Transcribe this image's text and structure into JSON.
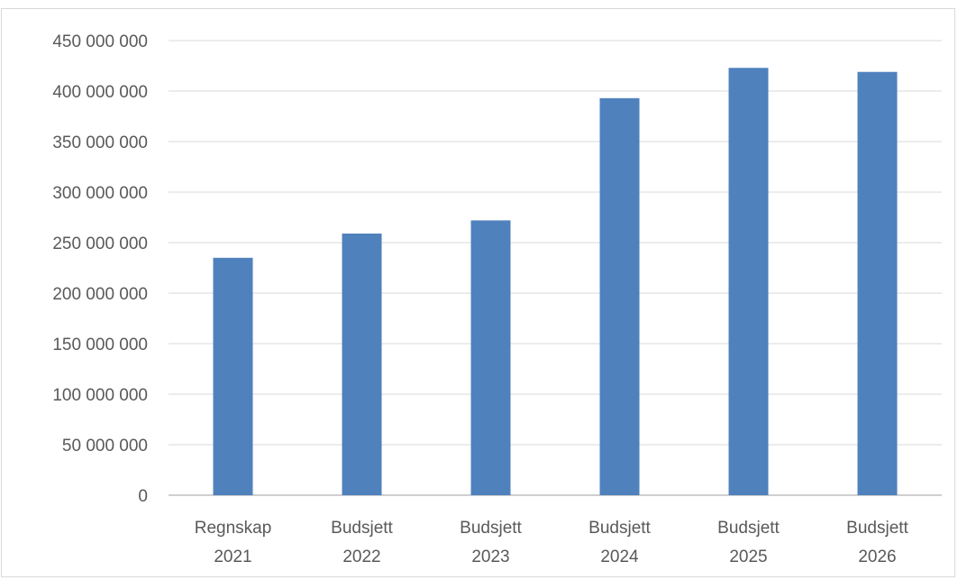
{
  "chart_data": {
    "type": "bar",
    "title": "",
    "xlabel": "",
    "ylabel": "",
    "categories": [
      [
        "Regnskap",
        "2021"
      ],
      [
        "Budsjett",
        "2022"
      ],
      [
        "Budsjett",
        "2023"
      ],
      [
        "Budsjett",
        "2024"
      ],
      [
        "Budsjett",
        "2025"
      ],
      [
        "Budsjett",
        "2026"
      ]
    ],
    "values": [
      235000000,
      259000000,
      272000000,
      393000000,
      423000000,
      419000000
    ],
    "ylim": [
      0,
      450000000
    ],
    "yticks": [
      0,
      50000000,
      100000000,
      150000000,
      200000000,
      250000000,
      300000000,
      350000000,
      400000000,
      450000000
    ],
    "ytick_labels": [
      "0",
      "50 000 000",
      "100 000 000",
      "150 000 000",
      "200 000 000",
      "250 000 000",
      "300 000 000",
      "350 000 000",
      "400 000 000",
      "450 000 000"
    ],
    "grid": true,
    "legend": "none",
    "colors": {
      "bar": "#4f81bd",
      "grid": "#d9d9d9",
      "axis": "#bfbfbf",
      "text": "#595959"
    }
  }
}
